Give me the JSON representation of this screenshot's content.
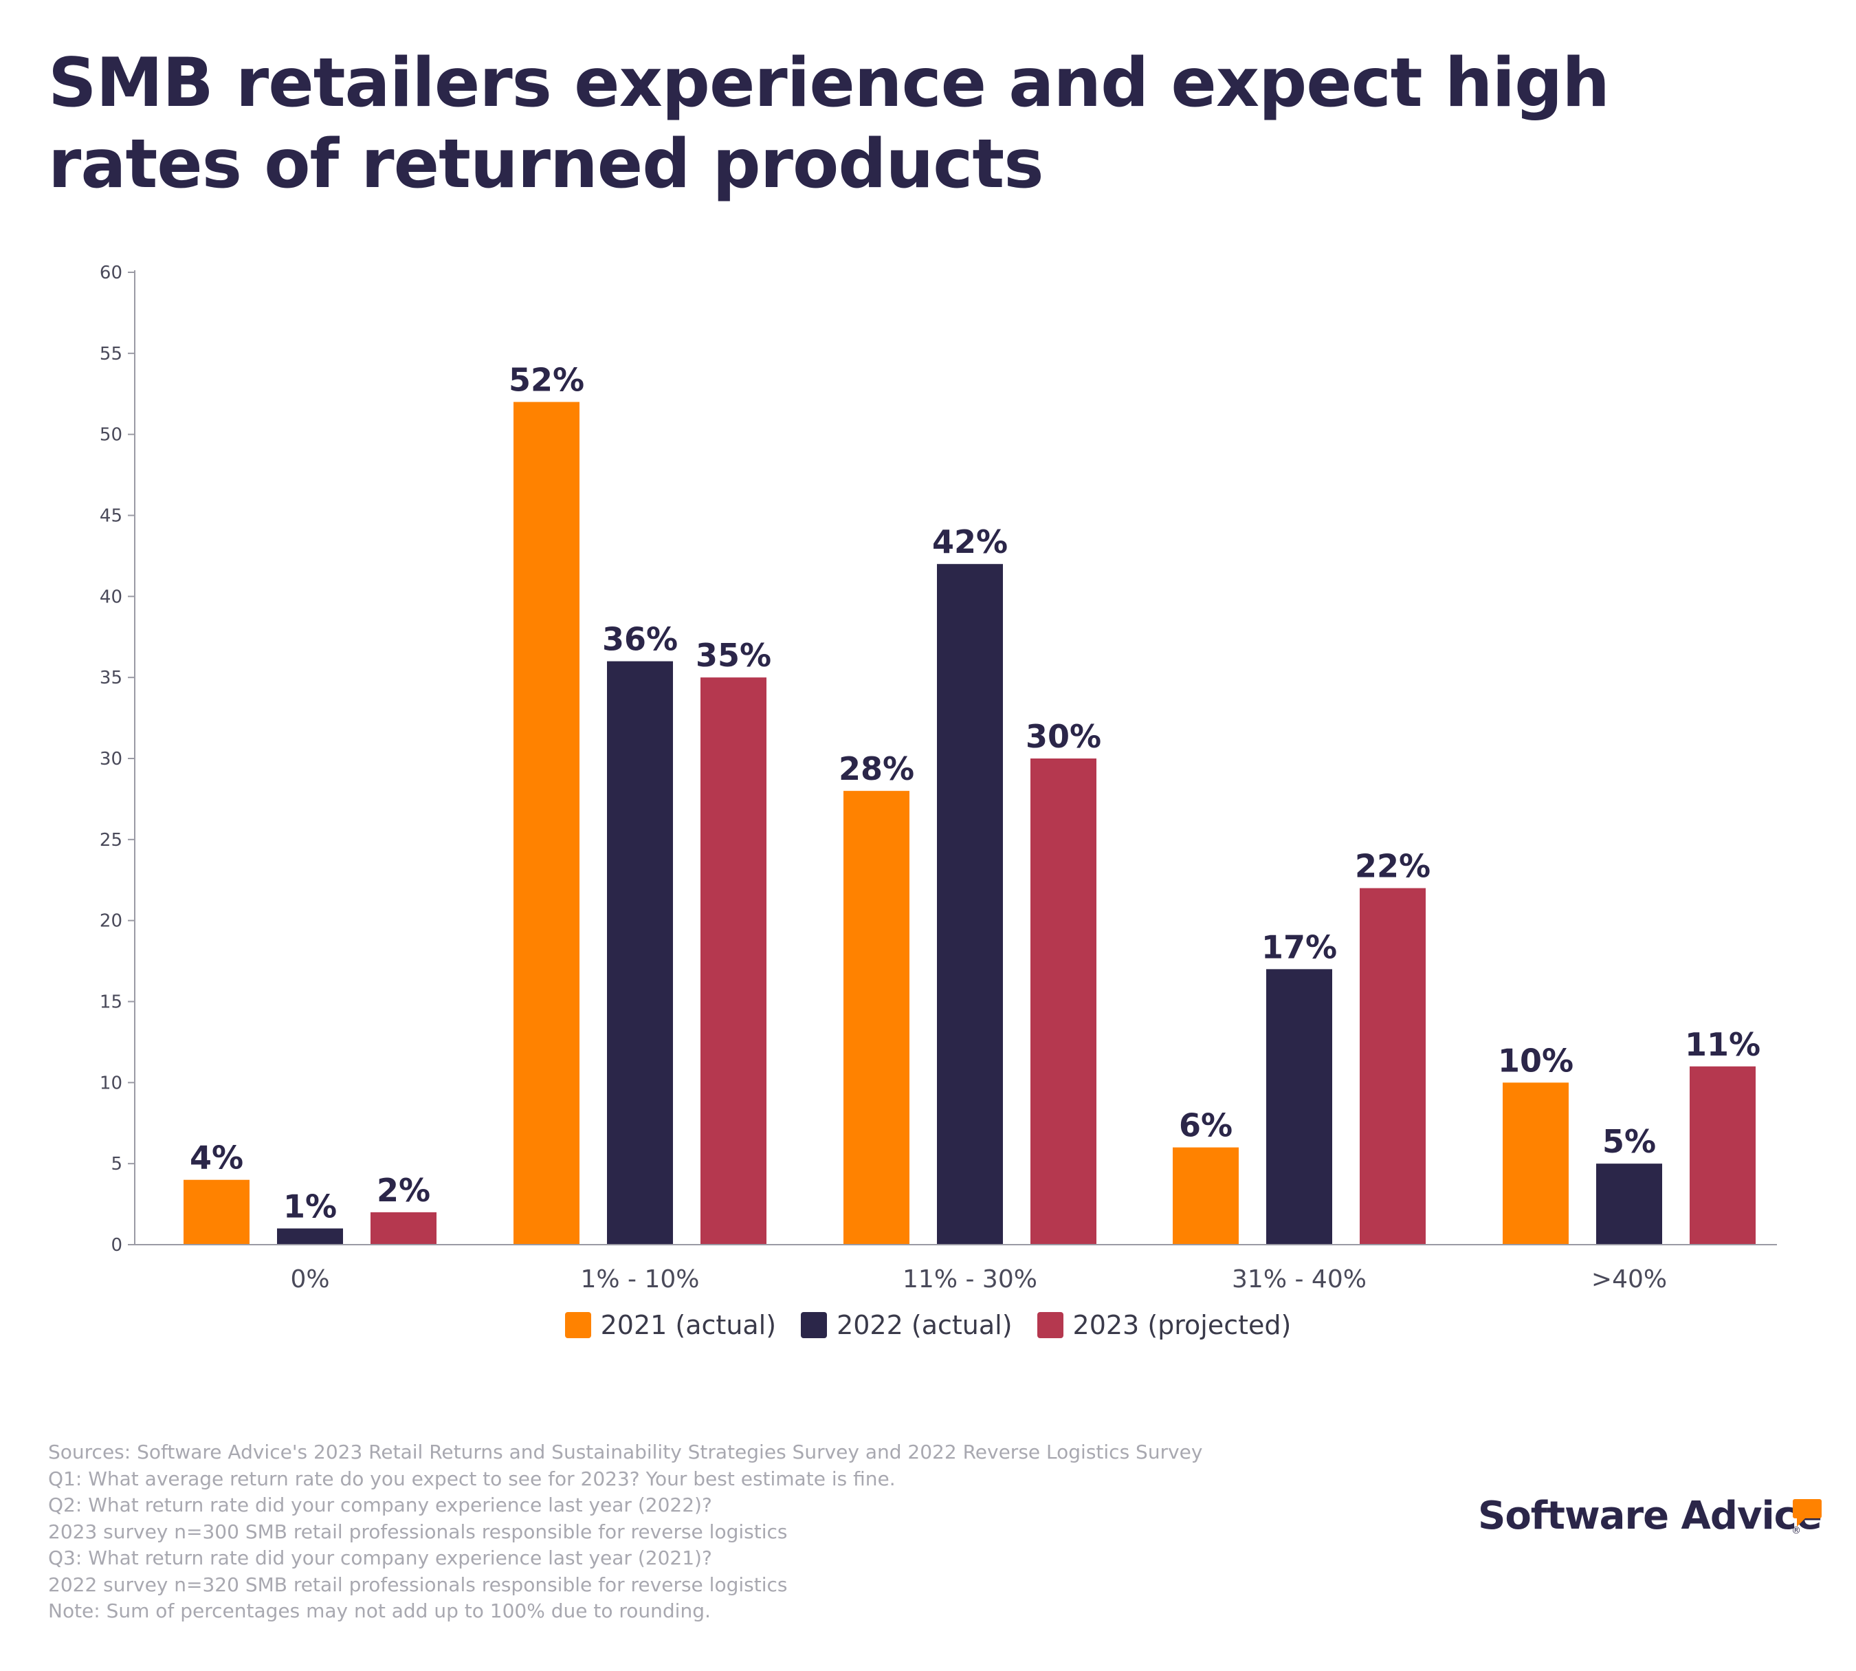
{
  "title": "SMB retailers experience and expect high rates of returned products",
  "chart_data": {
    "type": "bar",
    "categories": [
      "0%",
      "1% - 10%",
      "11% - 30%",
      "31% - 40%",
      ">40%"
    ],
    "series": [
      {
        "name": "2021 (actual)",
        "color": "#ff8200",
        "values": [
          4,
          52,
          28,
          6,
          10
        ],
        "labels": [
          "4%",
          "52%",
          "28%",
          "6%",
          "10%"
        ]
      },
      {
        "name": "2022 (actual)",
        "color": "#2b2649",
        "values": [
          1,
          36,
          42,
          17,
          5
        ],
        "labels": [
          "1%",
          "36%",
          "42%",
          "17%",
          "5%"
        ]
      },
      {
        "name": "2023 (projected)",
        "color": "#b5384f",
        "values": [
          2,
          35,
          30,
          22,
          11
        ],
        "labels": [
          "2%",
          "35%",
          "30%",
          "22%",
          "11%"
        ]
      }
    ],
    "yticks": [
      "0",
      "5",
      "10",
      "15",
      "20",
      "25",
      "30",
      "35",
      "40",
      "45",
      "50",
      "55",
      "60"
    ],
    "ylim": [
      0,
      60
    ],
    "xlabel": "",
    "ylabel": "",
    "legend_position": "bottom-center"
  },
  "sources": [
    "Sources: Software Advice's 2023 Retail Returns and Sustainability Strategies Survey and 2022 Reverse Logistics Survey",
    "Q1: What average return rate do you expect to see for 2023? Your best estimate is fine.",
    "Q2: What return rate did your company experience last year (2022)?",
    "2023 survey n=300 SMB retail professionals responsible for reverse logistics",
    "Q3: What return rate did your company experience last year (2021)?",
    "2022 survey n=320 SMB retail professionals responsible for reverse logistics",
    "Note: Sum of percentages may not add up to 100% due to rounding."
  ],
  "brand": {
    "name": "Software Advice",
    "reg": "®"
  }
}
